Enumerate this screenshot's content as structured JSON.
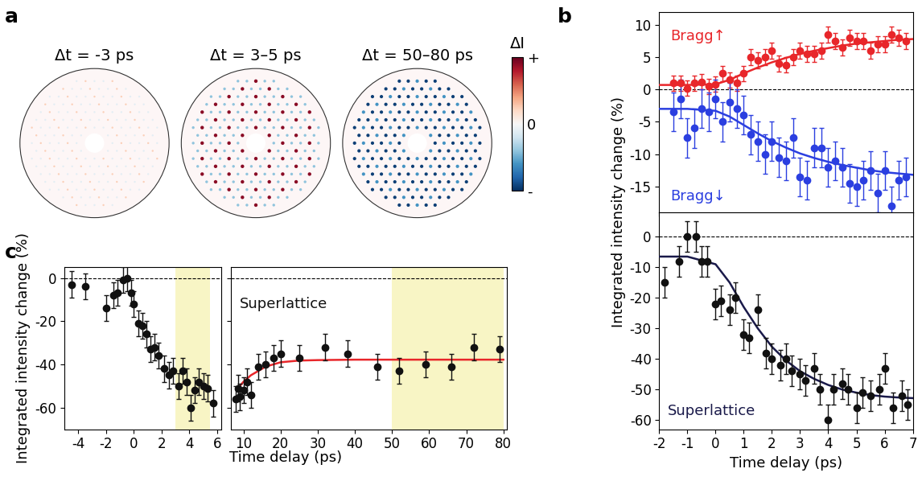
{
  "panel_a": {
    "label": "a",
    "titles": [
      "Δt = -3 ps",
      "Δt = 3–5 ps",
      "Δt = 50–80 ps"
    ],
    "colorbar": {
      "label": "ΔI",
      "range": [
        -1,
        1
      ],
      "ticks": [
        {
          "value": 1,
          "label": "+"
        },
        0,
        {
          "value": -1,
          "label": "-"
        }
      ]
    }
  },
  "chart_data": [
    {
      "type": "scatter",
      "panel_label": "b",
      "xlim": [
        -2,
        7
      ],
      "xticks": [
        -2,
        -1,
        0,
        1,
        2,
        3,
        4,
        5,
        6,
        7
      ],
      "ylim": [
        -19,
        12
      ],
      "yticks": [
        -15,
        -10,
        -5,
        0,
        5,
        10
      ],
      "tick_labels": "y",
      "reference_lines": [
        0
      ],
      "annotations": [
        {
          "text": "Bragg↑",
          "x": -1.6,
          "y": 8.3,
          "color": "#e8262a"
        },
        {
          "text": "Bragg↓",
          "x": -1.6,
          "y": -16.5,
          "color": "#2b3fe0"
        }
      ],
      "series": [
        {
          "type": "scatter",
          "marker": "o",
          "color": "#e8262a",
          "x": [
            -1.5,
            -1.25,
            -1,
            -0.75,
            -0.5,
            -0.25,
            0,
            0.25,
            0.5,
            0.75,
            1,
            1.25,
            1.5,
            1.75,
            2,
            2.25,
            2.5,
            2.75,
            3,
            3.25,
            3.5,
            3.75,
            4,
            4.25,
            4.5,
            4.75,
            5,
            5.25,
            5.5,
            5.75,
            6,
            6.25,
            6.5,
            6.75
          ],
          "values": [
            1,
            1,
            0.2,
            1,
            1.2,
            0.5,
            0.8,
            2.5,
            1.5,
            1,
            2.5,
            5,
            4.5,
            5,
            6,
            4,
            3.8,
            5,
            6,
            5.5,
            5.5,
            6,
            8.5,
            7.5,
            6.5,
            8,
            7.5,
            7.5,
            6,
            7,
            7,
            8.5,
            8,
            7.5
          ],
          "errors": [
            1.2,
            1.2,
            1.2,
            1.2,
            1.2,
            1.2,
            1.2,
            1.2,
            1.2,
            1.2,
            1.2,
            1.2,
            1.2,
            1.2,
            1.2,
            1.2,
            1.2,
            1.2,
            1.2,
            1.2,
            1.2,
            1.2,
            1.2,
            1.2,
            1.2,
            1.2,
            1.2,
            1.2,
            1.2,
            1.2,
            1.2,
            1.2,
            1.2,
            1.2
          ]
        },
        {
          "type": "line",
          "color": "#e8262a",
          "x": [
            -2,
            -1,
            0,
            0.5,
            1,
            1.5,
            2,
            2.5,
            3,
            3.5,
            4,
            4.5,
            5,
            5.5,
            6,
            6.5,
            7
          ],
          "values": [
            0.7,
            0.7,
            0.8,
            1.5,
            2.5,
            3.4,
            4.2,
            4.9,
            5.5,
            6.0,
            6.4,
            6.8,
            7.1,
            7.3,
            7.5,
            7.7,
            7.8
          ]
        },
        {
          "type": "scatter",
          "marker": "o",
          "color": "#2b3fe0",
          "x": [
            -1.5,
            -1.25,
            -1,
            -0.75,
            -0.5,
            -0.25,
            0,
            0.25,
            0.5,
            0.75,
            1,
            1.25,
            1.5,
            1.75,
            2,
            2.25,
            2.5,
            2.75,
            3,
            3.25,
            3.5,
            3.75,
            4,
            4.25,
            4.5,
            4.75,
            5,
            5.25,
            5.5,
            5.75,
            6,
            6.25,
            6.5,
            6.75
          ],
          "values": [
            -3.5,
            -1.5,
            -7.5,
            -6,
            -3,
            -3.5,
            -1.5,
            -5,
            -2,
            -3,
            -4,
            -7,
            -8,
            -10,
            -8,
            -10.5,
            -11,
            -7.5,
            -13.5,
            -14,
            -9,
            -9,
            -12,
            -11,
            -12,
            -14.5,
            -15,
            -14,
            -12.5,
            -16,
            -12.5,
            -18,
            -14,
            -13.5
          ],
          "errors": [
            3,
            3,
            3,
            3,
            3,
            3,
            3,
            3,
            3,
            3,
            3,
            3,
            3,
            3,
            3,
            3,
            3,
            3,
            3,
            3,
            3,
            3,
            3,
            3,
            3,
            3,
            3,
            3,
            3,
            3,
            3,
            3,
            3,
            3
          ]
        },
        {
          "type": "line",
          "color": "#2b3fe0",
          "x": [
            -2,
            -1,
            0,
            0.5,
            1,
            1.5,
            2,
            2.5,
            3,
            3.5,
            4,
            4.5,
            5,
            5.5,
            6,
            6.5,
            7
          ],
          "values": [
            -3,
            -3,
            -3.3,
            -4.2,
            -5.5,
            -6.8,
            -8,
            -9,
            -9.9,
            -10.6,
            -11.2,
            -11.7,
            -12.1,
            -12.5,
            -12.8,
            -13,
            -13.2
          ]
        }
      ]
    },
    {
      "type": "scatter",
      "xlim": [
        -2,
        7
      ],
      "xticks": [
        -2,
        -1,
        0,
        1,
        2,
        3,
        4,
        5,
        6,
        7
      ],
      "ylim": [
        -63,
        8
      ],
      "yticks": [
        -60,
        -50,
        -40,
        -30,
        -20,
        -10,
        0
      ],
      "xlabel": "Time delay (ps)",
      "ylabel": "Integrated intensity change (%)",
      "reference_lines": [
        0
      ],
      "annotations": [
        {
          "text": "Superlattice",
          "x": -1.7,
          "y": -57,
          "color": "#1a1a4a"
        }
      ],
      "series": [
        {
          "type": "scatter",
          "marker": "o",
          "color": "#111111",
          "x": [
            -1.8,
            -1.3,
            -1,
            -0.7,
            -0.5,
            -0.3,
            0,
            0.2,
            0.5,
            0.7,
            1,
            1.2,
            1.5,
            1.8,
            2,
            2.3,
            2.5,
            2.7,
            3,
            3.2,
            3.5,
            3.7,
            4,
            4.2,
            4.5,
            4.7,
            5,
            5.2,
            5.5,
            5.8,
            6,
            6.3,
            6.6,
            6.8
          ],
          "values": [
            -15,
            -8,
            0,
            0,
            -8,
            -8,
            -22,
            -21,
            -24,
            -20,
            -32,
            -33,
            -24,
            -38,
            -40,
            -42,
            -40,
            -44,
            -45,
            -47,
            -43,
            -50,
            -60,
            -50,
            -48,
            -50,
            -56,
            -51,
            -52,
            -50,
            -43,
            -56,
            -52,
            -55
          ],
          "errors": [
            5,
            5,
            5,
            5,
            5,
            5,
            5,
            5,
            5,
            5,
            5,
            5,
            5,
            5,
            5,
            5,
            5,
            5,
            5,
            5,
            5,
            5,
            5,
            5,
            5,
            5,
            5,
            5,
            5,
            5,
            5,
            5,
            5,
            5
          ]
        },
        {
          "type": "line",
          "color": "#1a1a4a",
          "x": [
            -2,
            -1,
            0,
            0.5,
            1,
            1.5,
            2,
            2.5,
            3,
            3.5,
            4,
            4.5,
            5,
            5.5,
            6,
            6.5,
            7
          ],
          "values": [
            -6.5,
            -6.5,
            -9,
            -15,
            -23,
            -30,
            -36,
            -40.5,
            -44,
            -46.5,
            -48.5,
            -50,
            -51,
            -51.8,
            -52.3,
            -52.6,
            -52.8
          ]
        }
      ]
    },
    {
      "type": "scatter",
      "panel_label": "c",
      "xlim": [
        -5,
        6.3
      ],
      "xticks": [
        -4,
        -2,
        0,
        2,
        4,
        6
      ],
      "ylim": [
        -70,
        5
      ],
      "yticks": [
        -60,
        -40,
        -20,
        0
      ],
      "ylabel": "Integrated intensity change (%)",
      "reference_lines": [
        0
      ],
      "highlight": [
        [
          3,
          5.5
        ]
      ],
      "series": [
        {
          "type": "scatter",
          "marker": "o",
          "color": "#111111",
          "x": [
            -4.5,
            -3.5,
            -2,
            -1.5,
            -1.2,
            -0.8,
            -0.5,
            -0.2,
            0,
            0.3,
            0.6,
            0.9,
            1.2,
            1.5,
            1.8,
            2.2,
            2.5,
            2.8,
            3.2,
            3.5,
            3.8,
            4.1,
            4.4,
            4.7,
            5,
            5.3,
            5.7
          ],
          "values": [
            -3,
            -4,
            -14,
            -8,
            -7,
            -1,
            0,
            -7,
            -12,
            -21,
            -22,
            -26,
            -33,
            -32,
            -36,
            -42,
            -45,
            -43,
            -50,
            -43,
            -48,
            -60,
            -52,
            -48,
            -50,
            -51,
            -58
          ],
          "errors": [
            6,
            6,
            6,
            6,
            6,
            6,
            6,
            6,
            6,
            6,
            6,
            6,
            6,
            6,
            6,
            6,
            6,
            6,
            6,
            6,
            6,
            6,
            6,
            6,
            6,
            6,
            6
          ]
        }
      ]
    },
    {
      "type": "scatter",
      "xlim": [
        6.5,
        81
      ],
      "xticks": [
        10,
        20,
        30,
        40,
        50,
        60,
        70,
        80
      ],
      "ylim": [
        -70,
        5
      ],
      "yticks": [
        -60,
        -40,
        -20,
        0
      ],
      "tick_labels": "x",
      "xlabel": "Time delay (ps)",
      "reference_lines": [
        0
      ],
      "highlight": [
        [
          50,
          80
        ]
      ],
      "annotations": [
        {
          "text": "Superlattice",
          "x": 9,
          "y": -12,
          "color": "#111111"
        }
      ],
      "series": [
        {
          "type": "scatter",
          "marker": "o",
          "color": "#111111",
          "x": [
            8,
            8.5,
            9,
            10,
            11,
            12,
            14,
            16,
            18,
            20,
            25,
            32,
            38,
            46,
            52,
            59,
            66,
            72,
            79
          ],
          "values": [
            -56,
            -51,
            -55,
            -52,
            -48,
            -54,
            -41,
            -40,
            -37,
            -35,
            -37,
            -32,
            -35,
            -41,
            -43,
            -40,
            -41,
            -32,
            -33
          ],
          "errors": [
            6,
            6,
            6,
            6,
            6,
            6,
            6,
            6,
            6,
            6,
            6,
            6,
            6,
            6,
            6,
            6,
            6,
            6,
            6
          ]
        },
        {
          "type": "line",
          "color": "#e8262a",
          "x": [
            9,
            10,
            12,
            14,
            16,
            18,
            20,
            25,
            30,
            40,
            80
          ],
          "values": [
            -50,
            -48,
            -45,
            -43,
            -41,
            -40,
            -39,
            -38.2,
            -38,
            -37.8,
            -37.8
          ]
        }
      ]
    }
  ]
}
